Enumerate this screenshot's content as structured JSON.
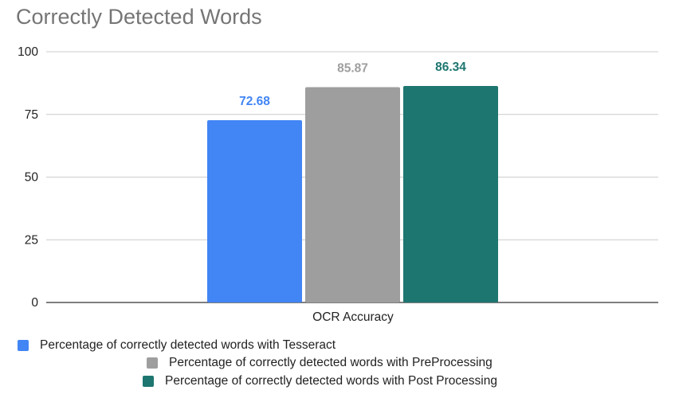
{
  "chart_data": {
    "type": "bar",
    "title": "Correctly Detected Words",
    "categories": [
      "OCR Accuracy"
    ],
    "series": [
      {
        "name": "Percentage of correctly detected words with Tesseract",
        "values": [
          72.68
        ],
        "color": "#4285f4",
        "label_color": "#4285f4"
      },
      {
        "name": "Percentage of correctly detected words with PreProcessing",
        "values": [
          85.87
        ],
        "color": "#9e9e9e",
        "label_color": "#9e9e9e"
      },
      {
        "name": "Percentage of correctly detected words with Post Processing",
        "values": [
          86.34
        ],
        "color": "#1e7670",
        "label_color": "#1e7670"
      }
    ],
    "data_labels": [
      "72.68",
      "85.87",
      "86.34"
    ],
    "ylim": [
      0,
      100
    ],
    "yticks": [
      "0",
      "25",
      "50",
      "75",
      "100"
    ],
    "xlabel": "",
    "ylabel": "",
    "grid": true,
    "legend_position": "bottom"
  }
}
